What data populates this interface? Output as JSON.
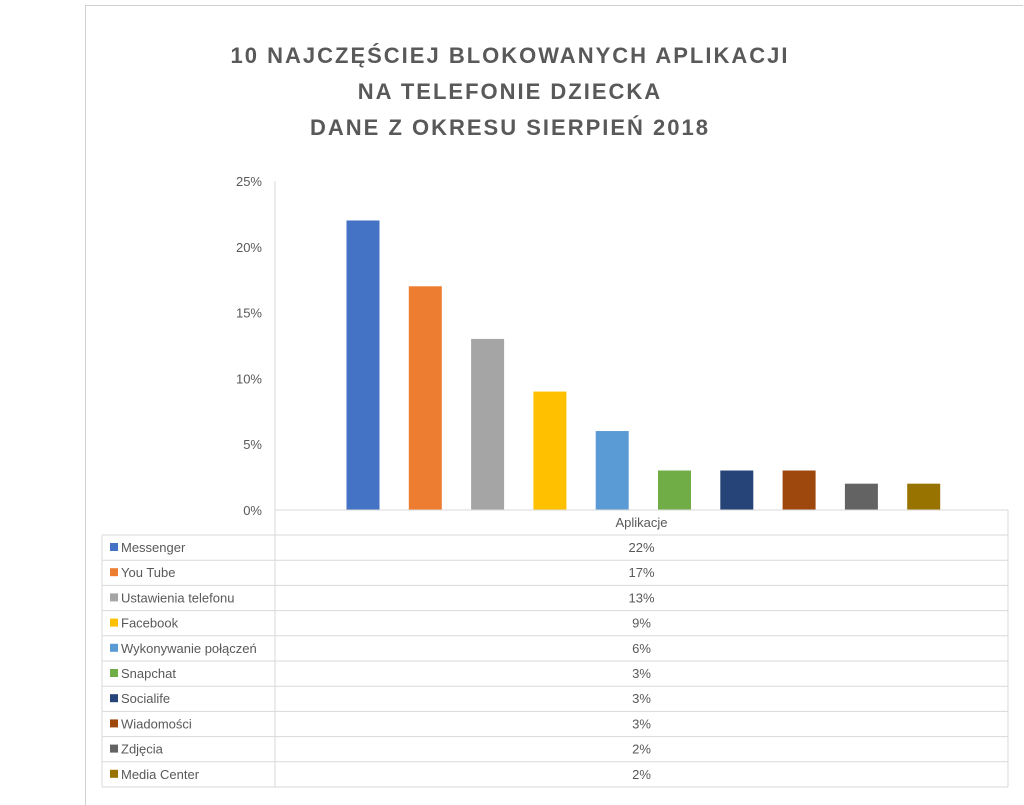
{
  "chart_data": {
    "type": "bar",
    "title_lines": [
      "10 NAJCZĘŚCIEJ BLOKOWANYCH APLIKACJI",
      "NA TELEFONIE DZIECKA",
      "DANE Z OKRESU SIERPIEŃ 2018"
    ],
    "categories": [
      "Aplikacje"
    ],
    "ylim": [
      0,
      25
    ],
    "y_ticks": [
      "0%",
      "5%",
      "10%",
      "15%",
      "20%",
      "25%"
    ],
    "y_tick_values": [
      0,
      5,
      10,
      15,
      20,
      25
    ],
    "grid": false,
    "legend": "data-table-below",
    "series": [
      {
        "name": "Messenger",
        "values": [
          22
        ],
        "label": "22%",
        "color": "#4472C4"
      },
      {
        "name": "You Tube",
        "values": [
          17
        ],
        "label": "17%",
        "color": "#ED7D31"
      },
      {
        "name": "Ustawienia telefonu",
        "values": [
          13
        ],
        "label": "13%",
        "color": "#A5A5A5"
      },
      {
        "name": "Facebook",
        "values": [
          9
        ],
        "label": "9%",
        "color": "#FFC000"
      },
      {
        "name": "Wykonywanie połączeń",
        "values": [
          6
        ],
        "label": "6%",
        "color": "#5B9BD5"
      },
      {
        "name": "Snapchat",
        "values": [
          3
        ],
        "label": "3%",
        "color": "#70AD47"
      },
      {
        "name": "Socialife",
        "values": [
          3
        ],
        "label": "3%",
        "color": "#264478"
      },
      {
        "name": "Wiadomości",
        "values": [
          3
        ],
        "label": "3%",
        "color": "#9E480E"
      },
      {
        "name": "Zdjęcia",
        "values": [
          2
        ],
        "label": "2%",
        "color": "#636363"
      },
      {
        "name": "Media Center",
        "values": [
          2
        ],
        "label": "2%",
        "color": "#997300"
      }
    ]
  }
}
